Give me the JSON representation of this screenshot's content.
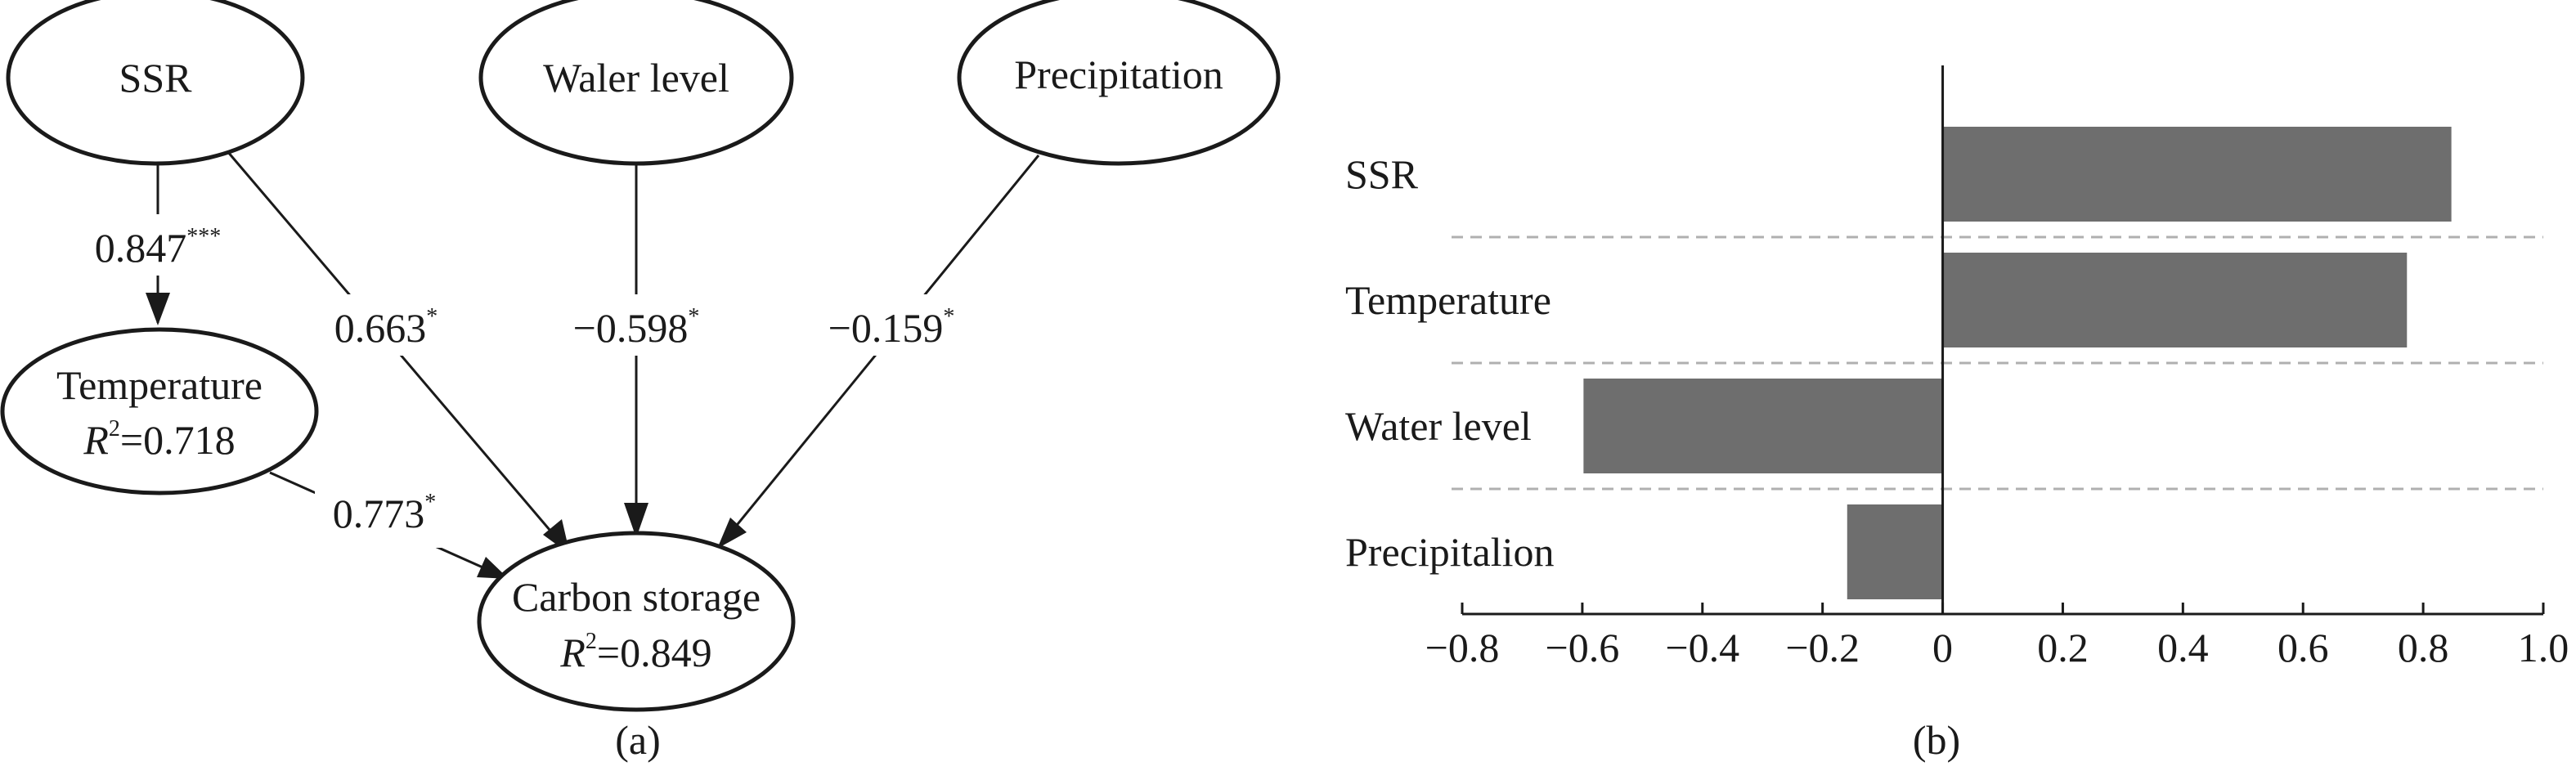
{
  "panel_a": {
    "caption": "(a)",
    "nodes": {
      "ssr": "SSR",
      "water_level": "Waler level",
      "precipitation": "Precipitation",
      "temperature": "Temperature",
      "temperature_r2": "=0.718",
      "carbon_storage": "Carbon storage",
      "carbon_storage_r2": "=0.849",
      "r_symbol": "R",
      "r_exponent": "2"
    },
    "edges": {
      "ssr_temperature": {
        "value": "0.847",
        "sig": "***"
      },
      "ssr_carbon": {
        "value": "0.663",
        "sig": "*"
      },
      "water_carbon": {
        "value": "−0.598",
        "sig": "*"
      },
      "precip_carbon": {
        "value": "−0.159",
        "sig": "*"
      },
      "temperature_carbon": {
        "value": "0.773",
        "sig": "*"
      }
    }
  },
  "panel_b": {
    "caption": "(b)"
  },
  "chart_data": {
    "type": "bar",
    "orientation": "horizontal",
    "categories": [
      "SSR",
      "Temperature",
      "Water level",
      "Precipitalion"
    ],
    "values": [
      0.847,
      0.773,
      -0.598,
      -0.159
    ],
    "xlim": [
      -0.8,
      1.0
    ],
    "xticks": [
      -0.8,
      -0.6,
      -0.4,
      -0.2,
      0,
      0.2,
      0.4,
      0.6,
      0.8,
      1.0
    ],
    "xtick_labels": [
      "−0.8",
      "−0.6",
      "−0.4",
      "−0.2",
      "0",
      "0.2",
      "0.4",
      "0.6",
      "0.8",
      "1.0"
    ],
    "bar_color": "#6e6e6e",
    "separators": "dashed",
    "title": "",
    "xlabel": "",
    "ylabel": ""
  }
}
